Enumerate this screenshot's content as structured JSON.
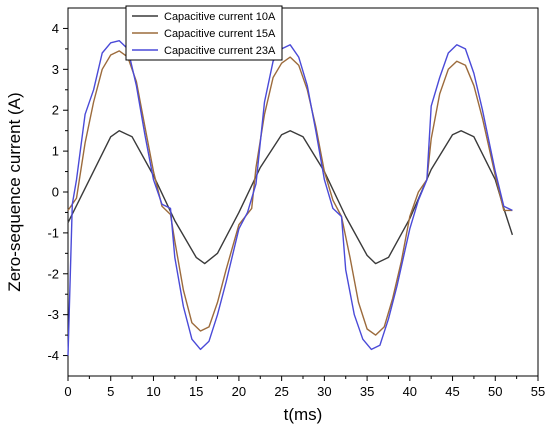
{
  "chart_data": {
    "type": "line",
    "title": "",
    "xlabel": "t(ms)",
    "ylabel": "Zero-sequence current (A)",
    "xlim": [
      0,
      55
    ],
    "ylim": [
      -4.5,
      4.5
    ],
    "x_ticks": [
      0,
      5,
      10,
      15,
      20,
      25,
      30,
      35,
      40,
      45,
      50,
      55
    ],
    "y_ticks": [
      -4,
      -3,
      -2,
      -1,
      0,
      1,
      2,
      3,
      4
    ],
    "grid": false,
    "legend_position": "top-center",
    "series": [
      {
        "name": "Capacitive current 10A",
        "color": "#3a3a3a",
        "points": [
          [
            0,
            -0.75
          ],
          [
            2.5,
            0.3
          ],
          [
            5,
            1.35
          ],
          [
            6,
            1.5
          ],
          [
            7.5,
            1.35
          ],
          [
            10,
            0.4
          ],
          [
            12.5,
            -0.7
          ],
          [
            15,
            -1.6
          ],
          [
            16,
            -1.75
          ],
          [
            17.5,
            -1.5
          ],
          [
            20,
            -0.5
          ],
          [
            22.5,
            0.6
          ],
          [
            25,
            1.4
          ],
          [
            26,
            1.5
          ],
          [
            27.5,
            1.35
          ],
          [
            30,
            0.5
          ],
          [
            32.5,
            -0.6
          ],
          [
            35,
            -1.55
          ],
          [
            36,
            -1.75
          ],
          [
            37.5,
            -1.6
          ],
          [
            40,
            -0.65
          ],
          [
            42.5,
            0.55
          ],
          [
            45,
            1.4
          ],
          [
            46,
            1.5
          ],
          [
            47.5,
            1.35
          ],
          [
            50,
            0.3
          ],
          [
            51,
            -0.4
          ],
          [
            52,
            -1.05
          ]
        ]
      },
      {
        "name": "Capacitive current 15A",
        "color": "#9c6b3c",
        "points": [
          [
            0,
            -0.45
          ],
          [
            1,
            -0.15
          ],
          [
            2,
            1.2
          ],
          [
            3,
            2.2
          ],
          [
            4,
            3.0
          ],
          [
            5,
            3.35
          ],
          [
            6,
            3.45
          ],
          [
            7,
            3.3
          ],
          [
            8,
            2.7
          ],
          [
            9,
            1.6
          ],
          [
            10,
            0.5
          ],
          [
            11,
            -0.35
          ],
          [
            12,
            -0.55
          ],
          [
            12.5,
            -1.2
          ],
          [
            13.5,
            -2.4
          ],
          [
            14.5,
            -3.2
          ],
          [
            15.5,
            -3.4
          ],
          [
            16.5,
            -3.3
          ],
          [
            17.5,
            -2.7
          ],
          [
            18.5,
            -1.9
          ],
          [
            20,
            -0.8
          ],
          [
            21.5,
            -0.4
          ],
          [
            22,
            0.6
          ],
          [
            23,
            1.9
          ],
          [
            24,
            2.8
          ],
          [
            25,
            3.15
          ],
          [
            26,
            3.3
          ],
          [
            27,
            3.1
          ],
          [
            28,
            2.5
          ],
          [
            29,
            1.6
          ],
          [
            30,
            0.5
          ],
          [
            31,
            -0.2
          ],
          [
            32,
            -0.6
          ],
          [
            33,
            -1.6
          ],
          [
            34,
            -2.7
          ],
          [
            35,
            -3.35
          ],
          [
            36,
            -3.5
          ],
          [
            37,
            -3.3
          ],
          [
            38,
            -2.6
          ],
          [
            39,
            -1.7
          ],
          [
            40,
            -0.6
          ],
          [
            41,
            0.0
          ],
          [
            42,
            0.3
          ],
          [
            42.5,
            1.3
          ],
          [
            43.5,
            2.4
          ],
          [
            44.5,
            3.0
          ],
          [
            45.5,
            3.2
          ],
          [
            46.5,
            3.1
          ],
          [
            47.5,
            2.6
          ],
          [
            48.5,
            1.8
          ],
          [
            50,
            0.4
          ],
          [
            51,
            -0.45
          ],
          [
            52,
            -0.45
          ]
        ]
      },
      {
        "name": "Capacitive current 23A",
        "color": "#4a4ad8",
        "points": [
          [
            0,
            -4.0
          ],
          [
            0.5,
            -0.3
          ],
          [
            1,
            0.3
          ],
          [
            2,
            1.9
          ],
          [
            3,
            2.5
          ],
          [
            4,
            3.4
          ],
          [
            5,
            3.65
          ],
          [
            6,
            3.7
          ],
          [
            7,
            3.5
          ],
          [
            8,
            2.6
          ],
          [
            9,
            1.4
          ],
          [
            10,
            0.3
          ],
          [
            11,
            -0.3
          ],
          [
            12,
            -0.4
          ],
          [
            12.5,
            -1.6
          ],
          [
            13.5,
            -2.8
          ],
          [
            14.5,
            -3.6
          ],
          [
            15.5,
            -3.85
          ],
          [
            16.5,
            -3.65
          ],
          [
            17.5,
            -3.0
          ],
          [
            18.5,
            -2.2
          ],
          [
            20,
            -0.9
          ],
          [
            21,
            -0.5
          ],
          [
            22,
            0.2
          ],
          [
            23,
            2.2
          ],
          [
            24,
            3.2
          ],
          [
            25,
            3.5
          ],
          [
            26,
            3.6
          ],
          [
            27,
            3.3
          ],
          [
            28,
            2.6
          ],
          [
            29,
            1.5
          ],
          [
            30,
            0.3
          ],
          [
            31,
            -0.4
          ],
          [
            32,
            -0.6
          ],
          [
            32.5,
            -1.9
          ],
          [
            33.5,
            -3.0
          ],
          [
            34.5,
            -3.6
          ],
          [
            35.5,
            -3.85
          ],
          [
            36.5,
            -3.75
          ],
          [
            37.5,
            -3.1
          ],
          [
            38.5,
            -2.3
          ],
          [
            40,
            -0.9
          ],
          [
            41,
            -0.2
          ],
          [
            42,
            0.3
          ],
          [
            42.5,
            2.1
          ],
          [
            43.5,
            2.8
          ],
          [
            44.5,
            3.4
          ],
          [
            45.5,
            3.6
          ],
          [
            46.5,
            3.5
          ],
          [
            47.5,
            2.9
          ],
          [
            48.5,
            2.0
          ],
          [
            50,
            0.5
          ],
          [
            51,
            -0.35
          ],
          [
            52,
            -0.45
          ]
        ]
      }
    ]
  }
}
